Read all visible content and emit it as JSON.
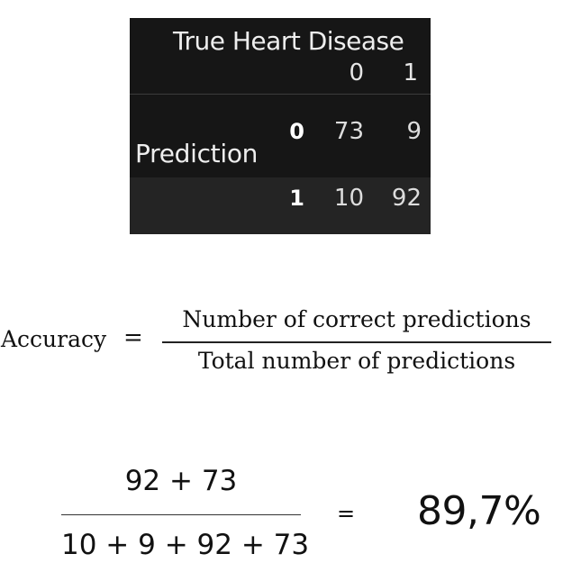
{
  "confusion_matrix": {
    "column_axis_title": "True Heart Disease",
    "row_axis_title": "Prediction",
    "column_labels": [
      "0",
      "1"
    ],
    "row_labels": [
      "0",
      "1"
    ],
    "cells": [
      [
        "73",
        "9"
      ],
      [
        "10",
        "92"
      ]
    ],
    "colors": {
      "background": "#161616",
      "alt_row": "#242424",
      "text": "#e6e6e6"
    }
  },
  "formula": {
    "lhs": "Accuracy",
    "equals": "=",
    "numerator": "Number of correct predictions",
    "denominator": "Total number of predictions"
  },
  "calculation": {
    "numerator": "92 + 73",
    "denominator": "10 + 9 + 92 + 73",
    "equals": "=",
    "result": "89,7%"
  }
}
